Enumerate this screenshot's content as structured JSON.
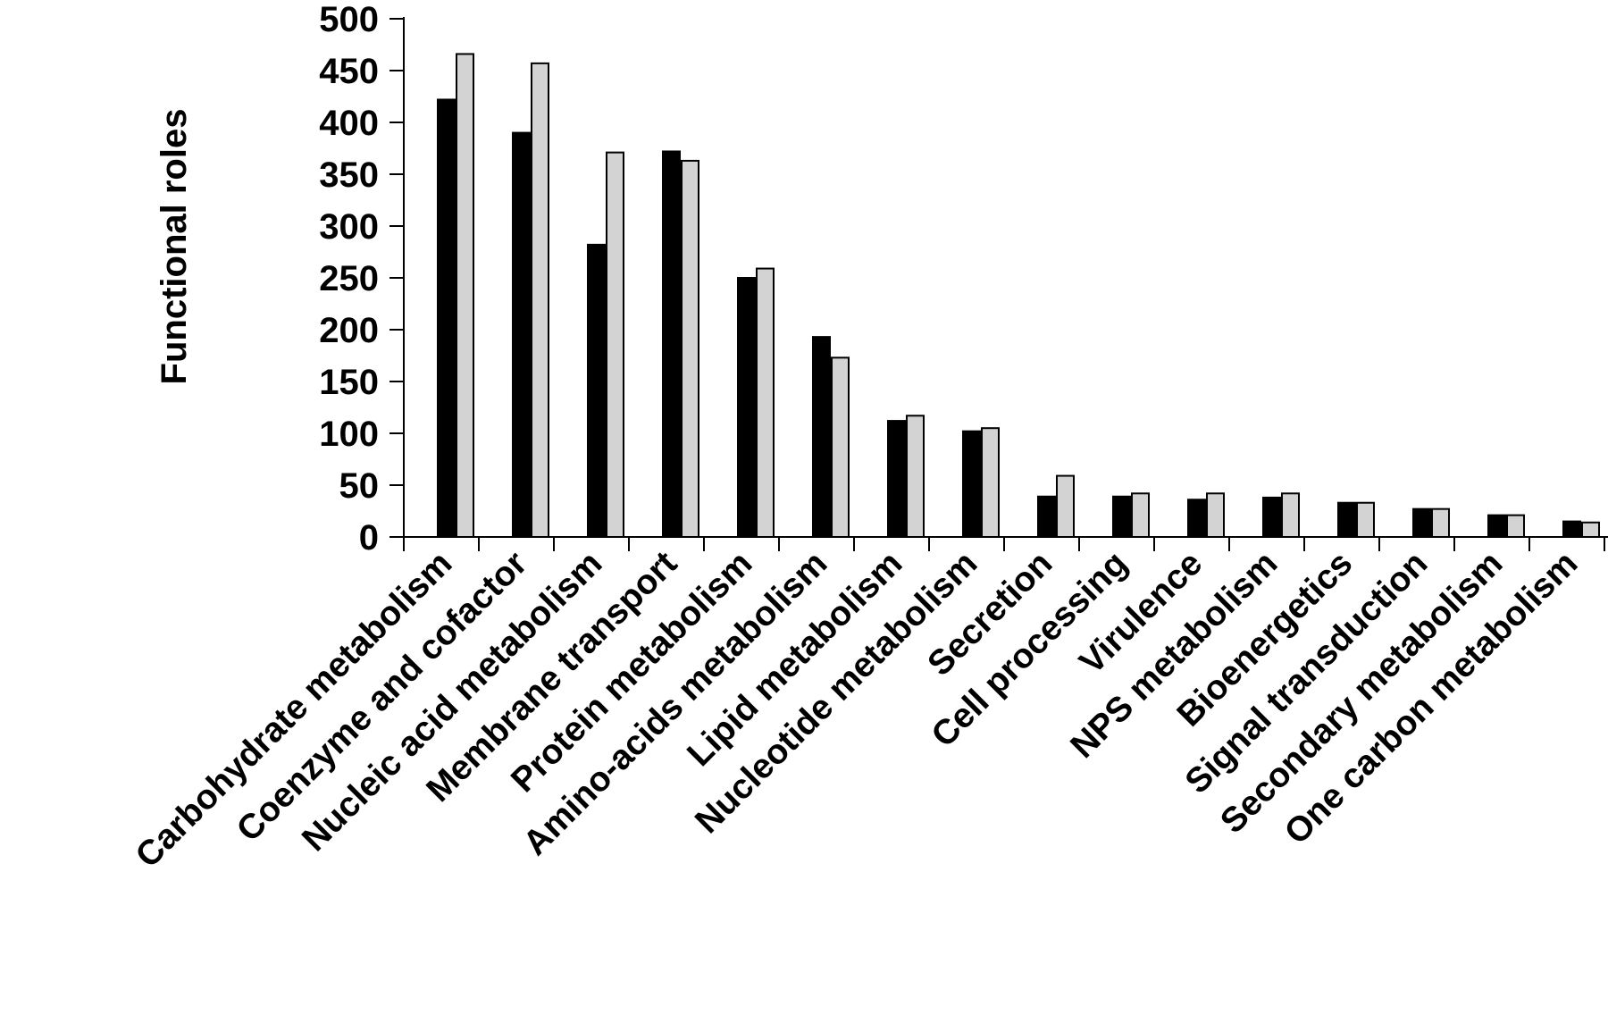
{
  "chart_data": {
    "type": "bar",
    "title": "",
    "xlabel": "",
    "ylabel": "Functional roles",
    "ylim": [
      0,
      500
    ],
    "yticks": [
      0,
      50,
      100,
      150,
      200,
      250,
      300,
      350,
      400,
      450,
      500
    ],
    "grid": false,
    "legend": "none",
    "categories": [
      "Carbohydrate metabolism",
      "Coenzyme and cofactor",
      "Nucleic acid metabolism",
      "Membrane transport",
      "Protein metabolism",
      "Amino-acids metabolism",
      "Lipid metabolism",
      "Nucleotide metabolism",
      "Secretion",
      "Cell processing",
      "Virulence",
      "NPS metabolism",
      "Bioenergetics",
      "Signal transduction",
      "Secondary metabolism",
      "One carbon metabolism"
    ],
    "series": [
      {
        "color": "#000000",
        "values": [
          422,
          390,
          282,
          372,
          250,
          193,
          112,
          102,
          39,
          39,
          36,
          38,
          33,
          27,
          21,
          15
        ]
      },
      {
        "color": "#d3d3d3",
        "values": [
          466,
          457,
          371,
          363,
          259,
          173,
          117,
          105,
          59,
          42,
          42,
          42,
          33,
          27,
          21,
          14
        ]
      }
    ]
  }
}
